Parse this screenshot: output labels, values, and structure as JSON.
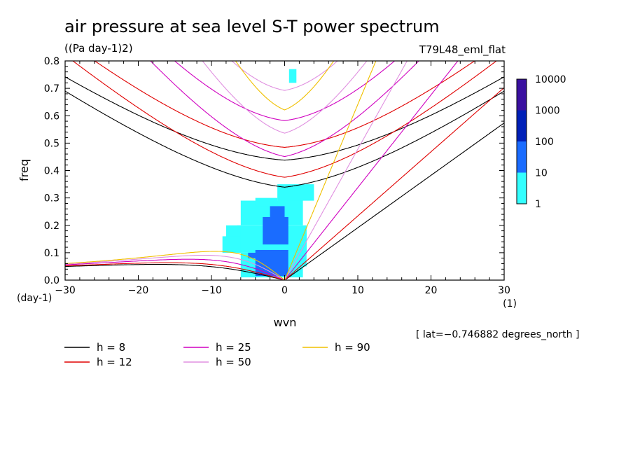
{
  "chart_data": {
    "type": "heatmap",
    "title": "air pressure at sea level S-T power spectrum",
    "units": "((Pa day-1)2)",
    "run_label": "T79L48_eml_flat",
    "xlabel": "wvn",
    "ylabel": "freq",
    "x_unit": "(1)",
    "y_unit": "(day-1)",
    "xlim": [
      -30,
      30
    ],
    "ylim": [
      0.0,
      0.8
    ],
    "x_ticks": [
      -30,
      -20,
      -10,
      0,
      10,
      20,
      30
    ],
    "x_tick_labels": [
      "−30",
      "−20",
      "−10",
      "0",
      "10",
      "20",
      "30"
    ],
    "y_ticks": [
      0.0,
      0.1,
      0.2,
      0.3,
      0.4,
      0.5,
      0.6,
      0.7,
      0.8
    ],
    "y_tick_labels": [
      "0.0",
      "0.1",
      "0.2",
      "0.3",
      "0.4",
      "0.5",
      "0.6",
      "0.7",
      "0.8"
    ],
    "footnote": "[ lat=−0.746882 degrees_north ]",
    "colorbar": {
      "labels": [
        "10000",
        "1000",
        "100",
        "10",
        "1"
      ],
      "levels": [
        1,
        10,
        100,
        1000,
        10000
      ],
      "colors": [
        "#33ffff",
        "#1a6cff",
        "#0020b8",
        "#3a10a0"
      ]
    },
    "series": [
      {
        "name": "h =  8",
        "h": 8,
        "color": "#000000"
      },
      {
        "name": "h = 12",
        "h": 12,
        "color": "#e00000"
      },
      {
        "name": "h = 25",
        "h": 25,
        "color": "#d000c0"
      },
      {
        "name": "h = 50",
        "h": 50,
        "color": "#e090e0"
      },
      {
        "name": "h = 90",
        "h": 90,
        "color": "#f0c000"
      }
    ],
    "spectrum_blobs": [
      {
        "x": [
          -6,
          2.5
        ],
        "y": [
          0.01,
          0.1
        ],
        "level": 1
      },
      {
        "x": [
          -6.5,
          3
        ],
        "y": [
          0.1,
          0.2
        ],
        "level": 1
      },
      {
        "x": [
          -6,
          2.5
        ],
        "y": [
          0.2,
          0.29
        ],
        "level": 1
      },
      {
        "x": [
          -1,
          4
        ],
        "y": [
          0.29,
          0.35
        ],
        "level": 1
      },
      {
        "x": [
          -4,
          -1
        ],
        "y": [
          0.27,
          0.3
        ],
        "level": 1
      },
      {
        "x": [
          -8,
          -6
        ],
        "y": [
          0.15,
          0.2
        ],
        "level": 1
      },
      {
        "x": [
          -8.5,
          -6
        ],
        "y": [
          0.1,
          0.16
        ],
        "level": 1
      },
      {
        "x": [
          0.5,
          3
        ],
        "y": [
          0.05,
          0.17
        ],
        "level": 1
      },
      {
        "x": [
          0.6,
          1.6
        ],
        "y": [
          0.72,
          0.77
        ],
        "level": 1
      },
      {
        "x": [
          -4,
          0.5
        ],
        "y": [
          0.015,
          0.11
        ],
        "level": 2
      },
      {
        "x": [
          -3,
          0.5
        ],
        "y": [
          0.13,
          0.23
        ],
        "level": 2
      },
      {
        "x": [
          -5,
          -3
        ],
        "y": [
          0.08,
          0.1
        ],
        "level": 2
      },
      {
        "x": [
          -2,
          0
        ],
        "y": [
          0.23,
          0.27
        ],
        "level": 2
      }
    ]
  }
}
